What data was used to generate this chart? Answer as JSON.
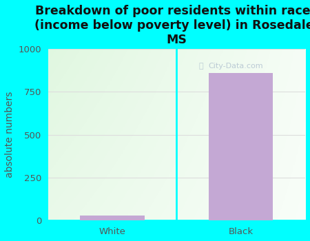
{
  "categories": [
    "White",
    "Black"
  ],
  "values": [
    30,
    860
  ],
  "bar_color": "#c4a8d4",
  "title": "Breakdown of poor residents within races\n(income below poverty level) in Rosedale,\nMS",
  "ylabel": "absolute numbers",
  "ylim": [
    0,
    1000
  ],
  "yticks": [
    0,
    250,
    500,
    750,
    1000
  ],
  "background_color": "#00ffff",
  "plot_bg_left": "#d8eece",
  "plot_bg_right": "#f8fef8",
  "title_fontsize": 12.5,
  "label_fontsize": 10,
  "tick_fontsize": 9.5,
  "bar_width": 0.5,
  "watermark": "City-Data.com",
  "grid_color": "#dddddd",
  "tick_color": "#555555",
  "title_color": "#111111",
  "separator_color": "#00ffff"
}
